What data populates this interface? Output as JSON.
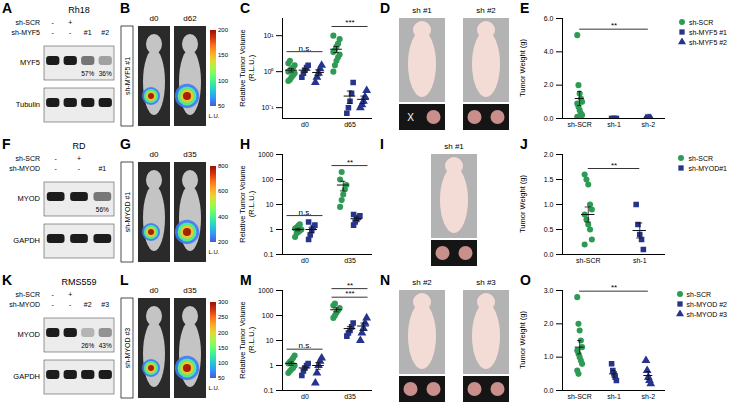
{
  "chart_data": [
    {
      "panel": "C",
      "type": "scatter",
      "ylabel": "Relative Tumor Volume (R.L.U.)",
      "log": "y",
      "categories": [
        "d0",
        "d65"
      ],
      "ylim": [
        0.05,
        30
      ],
      "yticks": [
        {
          "value": 0.1,
          "label": "10⁻¹"
        },
        {
          "value": 1,
          "label": "10⁰"
        },
        {
          "value": 10,
          "label": "10¹"
        }
      ],
      "series": [
        {
          "color": "#2e9b55",
          "marker": "circle",
          "values": [
            [
              0.55,
              0.6,
              0.7,
              0.8,
              0.9,
              1.0,
              1.1,
              1.2,
              1.3,
              1.5,
              1.7,
              2.0
            ],
            [
              1.0,
              1.5,
              2.0,
              2.5,
              3.0,
              3.5,
              4.0,
              5.0,
              6.0,
              8.0,
              10.0
            ]
          ],
          "mean": [
            1.1,
            4.2
          ],
          "error": [
            0.12,
            0.8
          ]
        },
        {
          "color": "#27348b",
          "marker": "square",
          "values": [
            [
              0.7,
              0.9,
              1.1,
              1.3,
              1.5
            ],
            [
              0.07,
              0.1,
              0.15,
              0.25,
              0.5
            ]
          ],
          "mean": [
            1.1,
            0.21
          ],
          "error": [
            0.14,
            0.08
          ]
        },
        {
          "color": "#27348b",
          "marker": "triangle",
          "values": [
            [
              0.5,
              0.7,
              0.9,
              1.2,
              1.5
            ],
            [
              0.1,
              0.12,
              0.15,
              0.2,
              0.3
            ]
          ],
          "mean": [
            0.95,
            0.17
          ],
          "error": [
            0.18,
            0.04
          ]
        }
      ],
      "annotations": [
        {
          "from": "d0",
          "to": "d0",
          "text": "n.s."
        },
        {
          "from": "d65",
          "to": "d65",
          "text": "***"
        }
      ]
    },
    {
      "panel": "E",
      "type": "scatter",
      "ylabel": "Tumor Weight (g)",
      "legend": "right",
      "categories": [
        "sh-SCR",
        "sh-1",
        "sh-2"
      ],
      "ylim": [
        0,
        6
      ],
      "yticks": [
        {
          "value": 0,
          "label": "0.0"
        },
        {
          "value": 2,
          "label": "2.0"
        },
        {
          "value": 4,
          "label": "4.0"
        },
        {
          "value": 6,
          "label": "6.0"
        }
      ],
      "series": [
        {
          "name": "sh-SCR",
          "color": "#2e9b55",
          "marker": "circle",
          "values": [
            [
              5.0,
              2.0,
              1.5,
              1.2,
              1.0,
              0.9,
              0.7,
              0.5,
              0.3,
              0.2,
              0.1
            ],
            null,
            null
          ],
          "mean": [
            1.2,
            null,
            null
          ],
          "error": [
            0.42,
            null,
            null
          ]
        },
        {
          "name": "sh-MYF5 #1",
          "color": "#27348b",
          "marker": "square",
          "values": [
            null,
            [
              0,
              0,
              0,
              0,
              0
            ],
            null
          ],
          "mean": [
            null,
            0,
            null
          ],
          "error": [
            null,
            0,
            null
          ]
        },
        {
          "name": "sh-MYF5 #2",
          "color": "#27348b",
          "marker": "triangle",
          "values": [
            null,
            null,
            [
              0,
              0,
              0,
              0,
              0
            ]
          ],
          "mean": [
            null,
            null,
            0
          ],
          "error": [
            null,
            null,
            0
          ]
        }
      ],
      "annotations": [
        {
          "from": "sh-SCR",
          "to": "sh-2",
          "text": "**"
        }
      ]
    },
    {
      "panel": "H",
      "type": "scatter",
      "ylabel": "Relative Tumor Volume (R.L.U.)",
      "log": "y",
      "categories": [
        "d0",
        "d35"
      ],
      "ylim": [
        0.1,
        1000
      ],
      "yticks": [
        0.1,
        1,
        10,
        100,
        1000
      ],
      "series": [
        {
          "color": "#2e9b55",
          "marker": "circle",
          "values": [
            [
              0.5,
              0.7,
              0.8,
              0.9,
              1.0,
              1.1,
              1.2,
              1.4,
              1.6
            ],
            [
              8,
              15,
              25,
              40,
              60,
              100,
              200
            ]
          ],
          "mean": [
            1.0,
            60
          ],
          "error": [
            0.11,
            25
          ]
        },
        {
          "color": "#27348b",
          "marker": "square",
          "values": [
            [
              0.4,
              0.6,
              0.9,
              1.2,
              1.5,
              2.0
            ],
            [
              1.5,
              2,
              2.5,
              3,
              3.5,
              4
            ]
          ],
          "mean": [
            1.0,
            2.7
          ],
          "error": [
            0.24,
            0.4
          ]
        }
      ],
      "annotations": [
        {
          "from": "d0",
          "to": "d0",
          "text": "n.s."
        },
        {
          "from": "d35",
          "to": "d35",
          "text": "**"
        }
      ]
    },
    {
      "panel": "J",
      "type": "scatter",
      "ylabel": "Tumor Weight (g)",
      "legend": "right",
      "categories": [
        "sh-SCR",
        "sh-1"
      ],
      "ylim": [
        0,
        2
      ],
      "yticks": [
        {
          "value": 0,
          "label": "0.0"
        },
        {
          "value": 0.5,
          "label": "0.5"
        },
        {
          "value": 1,
          "label": "1.0"
        },
        {
          "value": 1.5,
          "label": "1.5"
        },
        {
          "value": 2,
          "label": "2.0"
        }
      ],
      "series": [
        {
          "name": "sh-SCR",
          "color": "#2e9b55",
          "marker": "circle",
          "values": [
            [
              1.6,
              1.5,
              1.4,
              1.0,
              0.9,
              0.8,
              0.7,
              0.6,
              0.5,
              0.3,
              0.2
            ],
            null
          ],
          "mean": [
            0.8,
            null
          ],
          "error": [
            0.15,
            null
          ]
        },
        {
          "name": "sh-MYOD#1",
          "color": "#27348b",
          "marker": "square",
          "values": [
            null,
            [
              1.0,
              0.6,
              0.4,
              0.3,
              0.1
            ]
          ],
          "mean": [
            null,
            0.48
          ],
          "error": [
            null,
            0.15
          ]
        }
      ],
      "annotations": [
        {
          "from": "sh-SCR",
          "to": "sh-1",
          "text": "**"
        }
      ]
    },
    {
      "panel": "M",
      "type": "scatter",
      "ylabel": "Relative Tumor Volume (R.L.U.)",
      "log": "y",
      "categories": [
        "d0",
        "d35"
      ],
      "ylim": [
        0.1,
        1000
      ],
      "yticks": [
        0.1,
        1,
        10,
        100,
        1000
      ],
      "series": [
        {
          "color": "#2e9b55",
          "marker": "circle",
          "values": [
            [
              0.5,
              0.6,
              0.7,
              0.8,
              1.0,
              1.2,
              1.4,
              1.6,
              2.0,
              2.5
            ],
            [
              80,
              100,
              130,
              160,
              200,
              250,
              300
            ]
          ],
          "mean": [
            1.2,
            170
          ],
          "error": [
            0.18,
            30
          ]
        },
        {
          "color": "#27348b",
          "marker": "square",
          "values": [
            [
              0.4,
              0.6,
              0.8,
              1.0,
              1.2
            ],
            [
              15,
              20,
              25,
              35,
              50
            ]
          ],
          "mean": [
            0.8,
            30
          ],
          "error": [
            0.14,
            6
          ]
        },
        {
          "color": "#27348b",
          "marker": "triangle",
          "values": [
            [
              0.2,
              0.5,
              1.0,
              1.5,
              2.0
            ],
            [
              10,
              20,
              30,
              50,
              80
            ]
          ],
          "mean": [
            1.0,
            38
          ],
          "error": [
            0.3,
            12
          ]
        }
      ],
      "annotations": [
        {
          "from": "d0",
          "to": "d0",
          "text": "n.s."
        },
        {
          "from": "d35",
          "to": "d35",
          "text": "***"
        },
        {
          "from": "d35",
          "to": "d35",
          "text": "**"
        }
      ]
    },
    {
      "panel": "O",
      "type": "scatter",
      "ylabel": "Tumor Weight (g)",
      "legend": "right",
      "categories": [
        "sh-SCR",
        "sh-1",
        "sh-2"
      ],
      "ylim": [
        0,
        3
      ],
      "yticks": [
        {
          "value": 0,
          "label": "0.0"
        },
        {
          "value": 1,
          "label": "1.0"
        },
        {
          "value": 2,
          "label": "2.0"
        },
        {
          "value": 3,
          "label": "3.0"
        }
      ],
      "series": [
        {
          "name": "sh-SCR",
          "color": "#2e9b55",
          "marker": "circle",
          "values": [
            [
              2.8,
              2.0,
              1.8,
              1.5,
              1.3,
              1.2,
              1.1,
              1.0,
              0.9,
              0.8,
              0.6,
              0.5
            ],
            null,
            null
          ],
          "mean": [
            1.3,
            null,
            null
          ],
          "error": [
            0.2,
            null,
            null
          ]
        },
        {
          "name": "sh-MYOD #2",
          "color": "#27348b",
          "marker": "square",
          "values": [
            null,
            [
              0.8,
              0.6,
              0.5,
              0.4,
              0.3
            ],
            null
          ],
          "mean": [
            null,
            0.5,
            null
          ],
          "error": [
            null,
            0.1,
            null
          ]
        },
        {
          "name": "sh-MYOD #3",
          "color": "#27348b",
          "marker": "triangle",
          "values": [
            null,
            null,
            [
              0.9,
              0.6,
              0.4,
              0.3,
              0.2
            ]
          ],
          "mean": [
            null,
            null,
            0.45
          ],
          "error": [
            null,
            null,
            0.12
          ]
        }
      ],
      "annotations": [
        {
          "from": "sh-SCR",
          "to": "sh-2",
          "text": "**"
        }
      ]
    }
  ],
  "blots": [
    {
      "panel": "A",
      "cell_line": "Rh18",
      "conditions": [
        {
          "name": "sh-SCR",
          "lanes": [
            "-",
            "+",
            null,
            null
          ]
        },
        {
          "name": "sh-MYF5",
          "lanes": [
            "-",
            "-",
            "#1",
            "#2"
          ]
        }
      ],
      "proteins": [
        {
          "name": "MYF5",
          "values": [
            100,
            100,
            57,
            36
          ],
          "value_labels": [
            null,
            null,
            "57%",
            "36%"
          ]
        },
        {
          "name": "Tubulin",
          "values": [
            100,
            100,
            100,
            100
          ]
        }
      ]
    },
    {
      "panel": "F",
      "cell_line": "RD",
      "conditions": [
        {
          "name": "sh-SCR",
          "lanes": [
            "-",
            "+",
            null
          ]
        },
        {
          "name": "sh-MYOD",
          "lanes": [
            "-",
            "-",
            "#1"
          ]
        }
      ],
      "proteins": [
        {
          "name": "MYOD",
          "values": [
            100,
            100,
            56
          ],
          "value_labels": [
            null,
            null,
            "56%"
          ]
        },
        {
          "name": "GAPDH",
          "values": [
            100,
            100,
            100
          ]
        }
      ]
    },
    {
      "panel": "K",
      "cell_line": "RMS559",
      "conditions": [
        {
          "name": "sh-SCR",
          "lanes": [
            "-",
            "+",
            null,
            null
          ]
        },
        {
          "name": "sh-MYOD",
          "lanes": [
            "-",
            "-",
            "#2",
            "#3"
          ]
        }
      ],
      "proteins": [
        {
          "name": "MYOD",
          "values": [
            100,
            100,
            26,
            43
          ],
          "value_labels": [
            null,
            null,
            "26%",
            "43%"
          ]
        },
        {
          "name": "GAPDH",
          "values": [
            100,
            100,
            100,
            100
          ]
        }
      ]
    }
  ],
  "imaging": [
    {
      "panel": "B",
      "label": "sh-MYF5 #1",
      "days": [
        "d0",
        "d62"
      ],
      "colorbar": {
        "ticks": [
          50,
          100,
          150,
          200
        ],
        "label": "L.U."
      }
    },
    {
      "panel": "G",
      "label": "sh-MYOD #1",
      "days": [
        "d0",
        "d35"
      ],
      "colorbar": {
        "ticks": [
          200,
          400,
          600,
          800
        ],
        "label": "L.U."
      }
    },
    {
      "panel": "L",
      "label": "sh-MYOD #3",
      "days": [
        "d0",
        "d35"
      ],
      "colorbar": {
        "ticks": [
          50,
          100,
          150,
          200,
          250,
          300
        ],
        "label": "L.U."
      }
    }
  ],
  "photos": [
    {
      "panel": "D",
      "mice": [
        {
          "label": "sh #1",
          "tumors": [
            "X",
            null
          ]
        },
        {
          "label": "sh #2",
          "tumors": [
            null,
            null
          ]
        }
      ]
    },
    {
      "panel": "I",
      "mice": [
        {
          "label": "sh #1",
          "tumors": [
            null,
            null
          ]
        }
      ]
    },
    {
      "panel": "N",
      "mice": [
        {
          "label": "sh #2",
          "tumors": [
            null,
            null
          ]
        },
        {
          "label": "sh #3",
          "tumors": [
            null,
            null
          ]
        }
      ]
    }
  ]
}
